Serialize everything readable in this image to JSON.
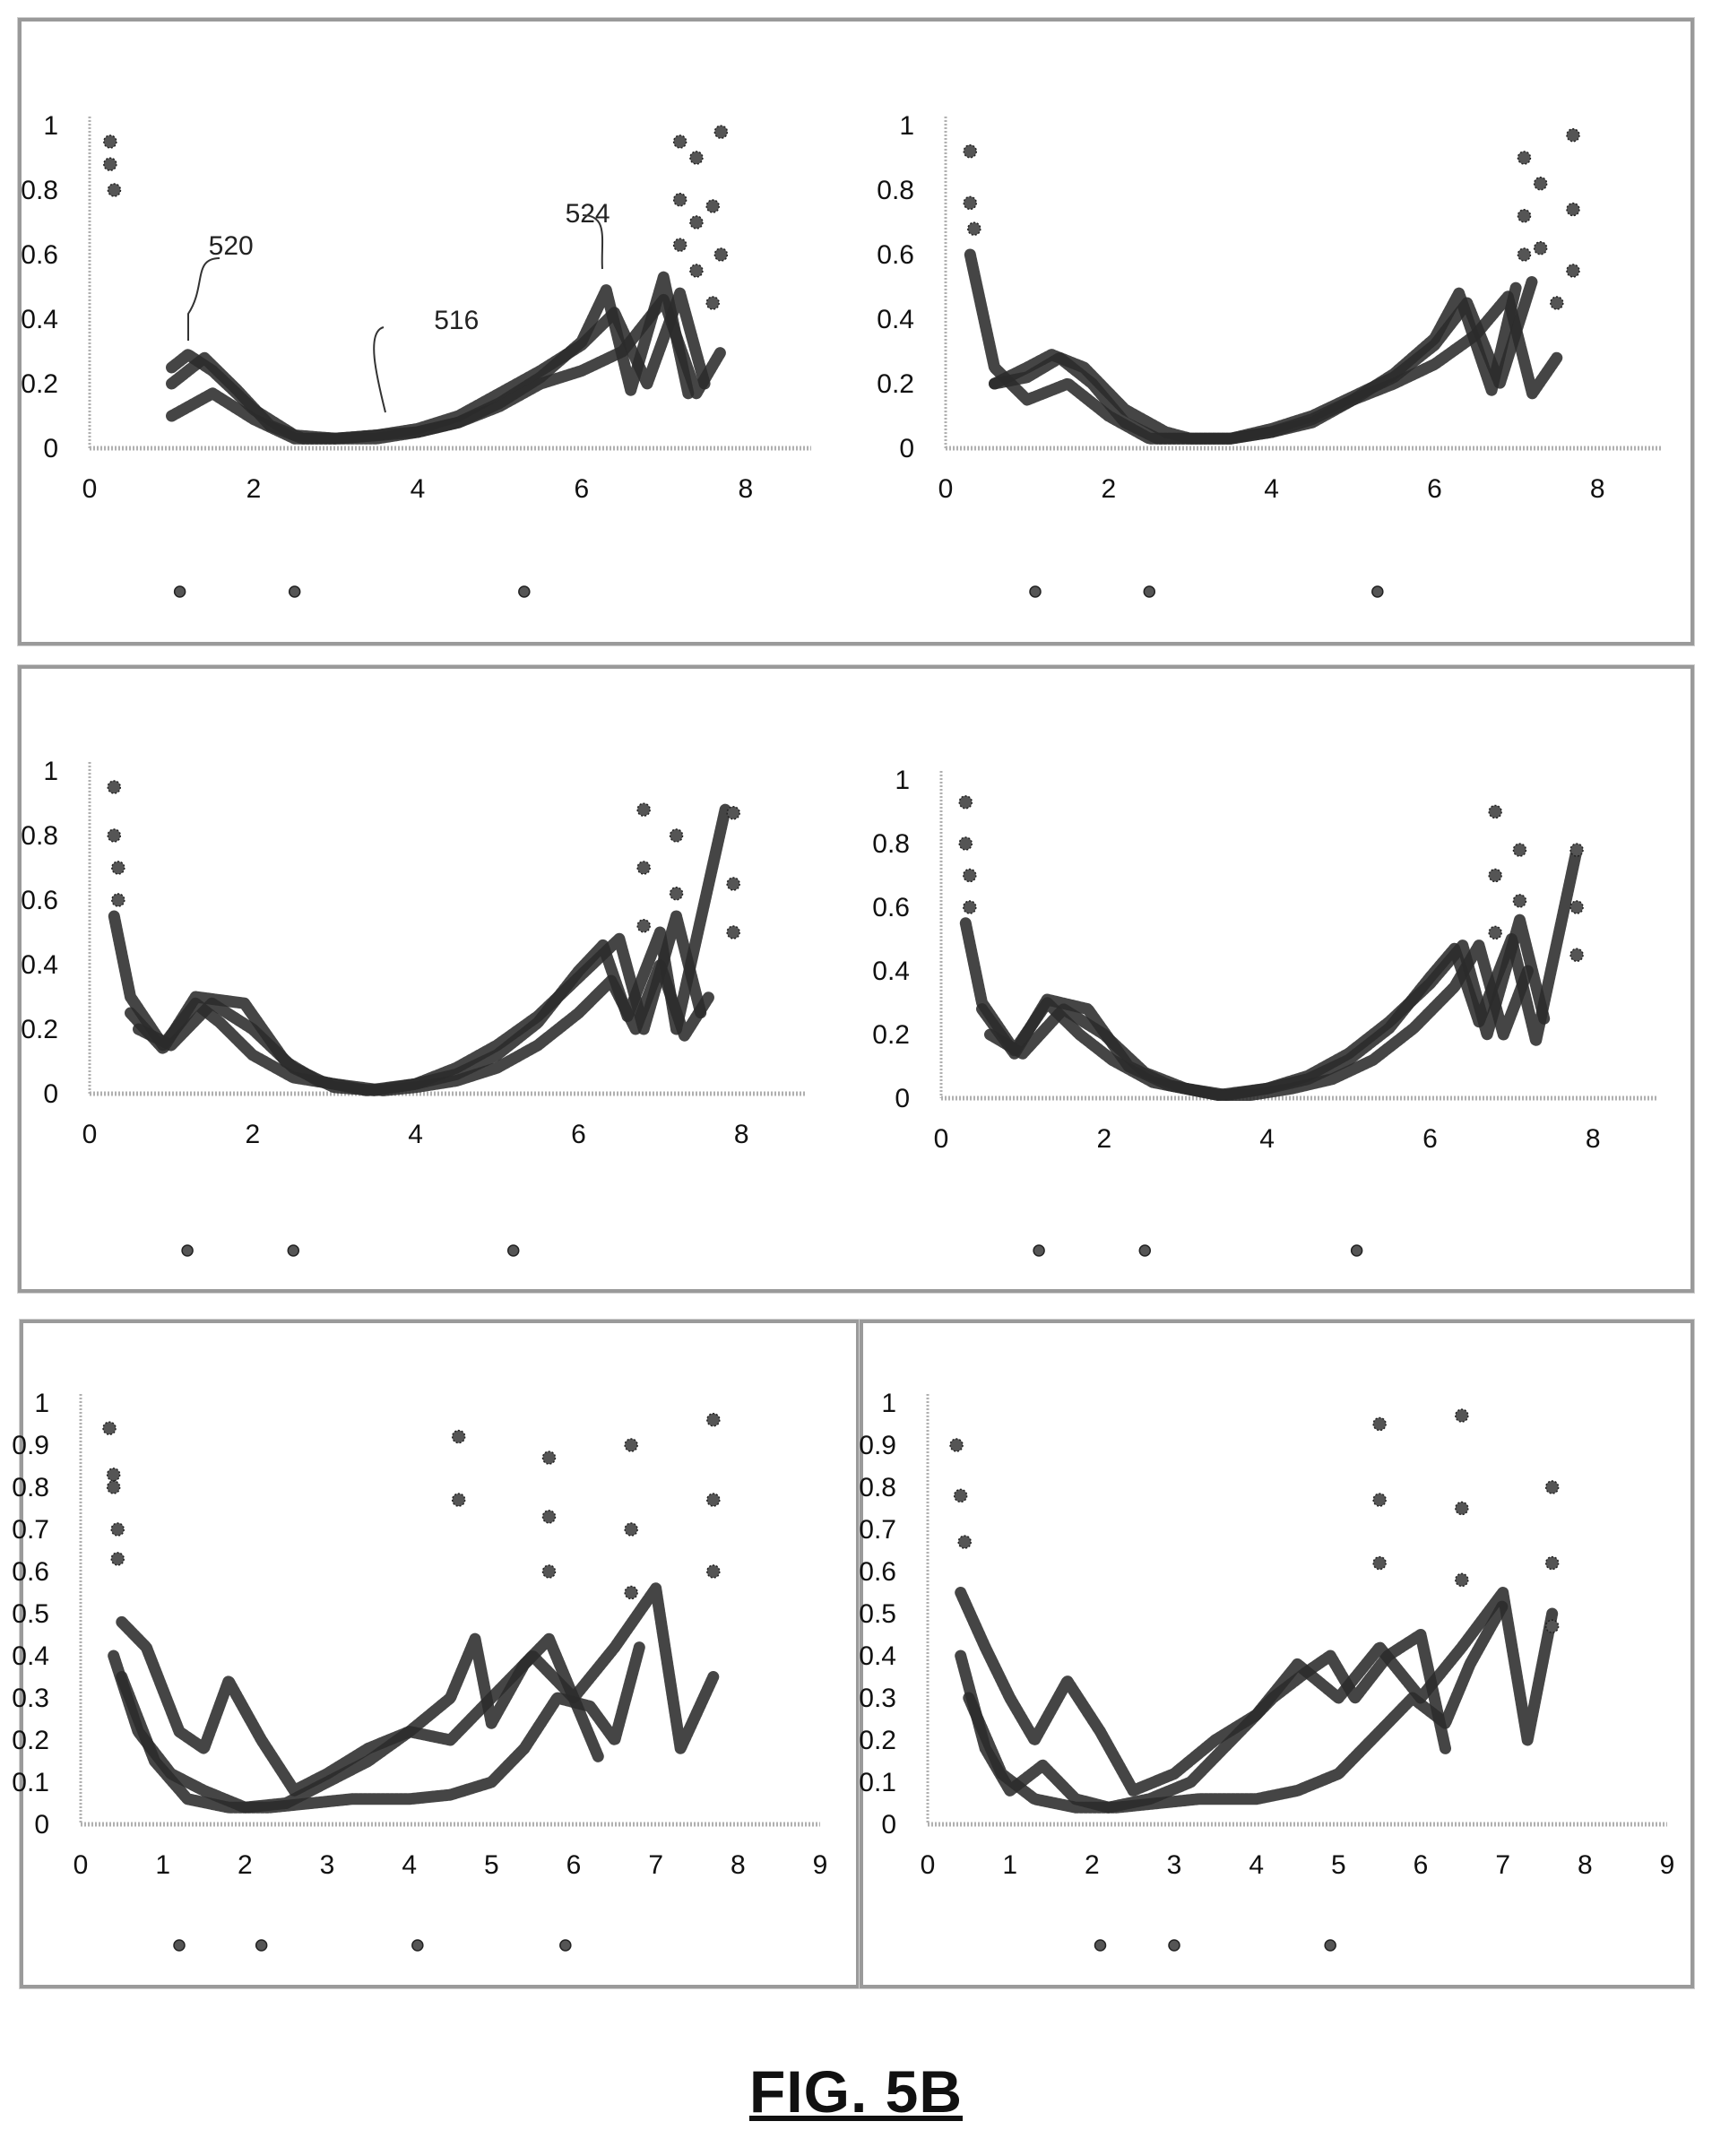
{
  "figure_label": "FIG. 5B",
  "colors": {
    "curve": "#2b2b2b",
    "marker": "#555555",
    "axis": "#b0b0b0",
    "frame": "#9a9a9a"
  },
  "chart_data": [
    {
      "id": "p1",
      "type": "line",
      "xlim": [
        0,
        8.8
      ],
      "ylim": [
        0,
        1
      ],
      "xticks": [
        "0",
        "2",
        "4",
        "6",
        "8"
      ],
      "yticks": [
        "0",
        "0.2",
        "0.4",
        "0.6",
        "0.8",
        "1"
      ],
      "series": [
        {
          "x": [
            1,
            1.5,
            2,
            2.5,
            3,
            3.5,
            4,
            4.5,
            5,
            5.5,
            6,
            6.5,
            7,
            7.4,
            7.7
          ],
          "y": [
            0.1,
            0.17,
            0.09,
            0.03,
            0.03,
            0.03,
            0.05,
            0.08,
            0.13,
            0.2,
            0.24,
            0.3,
            0.46,
            0.17,
            0.3
          ]
        },
        {
          "x": [
            1,
            1.4,
            1.8,
            2.2,
            2.6,
            3,
            3.5,
            4,
            4.5,
            5,
            5.5,
            6,
            6.4,
            6.8,
            7.2,
            7.5
          ],
          "y": [
            0.2,
            0.28,
            0.18,
            0.07,
            0.03,
            0.03,
            0.04,
            0.06,
            0.1,
            0.17,
            0.24,
            0.32,
            0.42,
            0.2,
            0.48,
            0.2
          ]
        },
        {
          "x": [
            1,
            1.2,
            1.5,
            2,
            2.5,
            3,
            3.5,
            4,
            4.5,
            5,
            5.5,
            6,
            6.3,
            6.6,
            7,
            7.3
          ],
          "y": [
            0.25,
            0.29,
            0.24,
            0.12,
            0.04,
            0.03,
            0.04,
            0.05,
            0.08,
            0.14,
            0.22,
            0.33,
            0.49,
            0.18,
            0.53,
            0.17
          ]
        }
      ],
      "points": [
        {
          "x": 0.25,
          "y": 0.95
        },
        {
          "x": 0.25,
          "y": 0.88
        },
        {
          "x": 0.3,
          "y": 0.8
        },
        {
          "x": 7.2,
          "y": 0.95
        },
        {
          "x": 7.4,
          "y": 0.9
        },
        {
          "x": 7.7,
          "y": 0.98
        },
        {
          "x": 7.2,
          "y": 0.77
        },
        {
          "x": 7.6,
          "y": 0.75
        },
        {
          "x": 7.4,
          "y": 0.7
        },
        {
          "x": 7.2,
          "y": 0.63
        },
        {
          "x": 7.7,
          "y": 0.6
        },
        {
          "x": 7.4,
          "y": 0.55
        },
        {
          "x": 7.6,
          "y": 0.45
        }
      ],
      "markers": [
        1.1,
        2.5,
        5.3
      ],
      "annotations": [
        {
          "text": "520",
          "x": 1.45,
          "y": 0.6
        },
        {
          "text": "516",
          "x": 4.2,
          "y": 0.37
        },
        {
          "text": "524",
          "x": 5.8,
          "y": 0.7
        }
      ]
    },
    {
      "id": "p2",
      "type": "line",
      "xlim": [
        0,
        8.8
      ],
      "ylim": [
        0,
        1
      ],
      "xticks": [
        "0",
        "2",
        "4",
        "6",
        "8"
      ],
      "yticks": [
        "0",
        "0.2",
        "0.4",
        "0.6",
        "0.8",
        "1"
      ],
      "series": [
        {
          "x": [
            0.3,
            0.6,
            1,
            1.5,
            2,
            2.5,
            3,
            3.5,
            4,
            4.5,
            5,
            5.5,
            6,
            6.5,
            6.9,
            7.2,
            7.5
          ],
          "y": [
            0.6,
            0.25,
            0.15,
            0.2,
            0.1,
            0.03,
            0.03,
            0.03,
            0.05,
            0.08,
            0.15,
            0.2,
            0.26,
            0.35,
            0.47,
            0.17,
            0.28
          ]
        },
        {
          "x": [
            0.6,
            1,
            1.4,
            1.8,
            2.2,
            2.6,
            3,
            3.5,
            4,
            4.5,
            5,
            5.5,
            6,
            6.4,
            6.8,
            7.2
          ],
          "y": [
            0.2,
            0.22,
            0.28,
            0.2,
            0.08,
            0.03,
            0.03,
            0.03,
            0.06,
            0.1,
            0.16,
            0.22,
            0.32,
            0.45,
            0.2,
            0.52
          ]
        },
        {
          "x": [
            0.6,
            1,
            1.3,
            1.7,
            2.2,
            2.7,
            3,
            3.5,
            4,
            4.5,
            5,
            5.5,
            6,
            6.3,
            6.7,
            7
          ],
          "y": [
            0.2,
            0.25,
            0.29,
            0.25,
            0.12,
            0.05,
            0.03,
            0.03,
            0.05,
            0.09,
            0.15,
            0.23,
            0.34,
            0.48,
            0.18,
            0.5
          ]
        }
      ],
      "points": [
        {
          "x": 0.3,
          "y": 0.92
        },
        {
          "x": 0.3,
          "y": 0.76
        },
        {
          "x": 0.35,
          "y": 0.68
        },
        {
          "x": 7.1,
          "y": 0.9
        },
        {
          "x": 7.3,
          "y": 0.82
        },
        {
          "x": 7.7,
          "y": 0.97
        },
        {
          "x": 7.1,
          "y": 0.72
        },
        {
          "x": 7.7,
          "y": 0.74
        },
        {
          "x": 7.3,
          "y": 0.62
        },
        {
          "x": 7.1,
          "y": 0.6
        },
        {
          "x": 7.7,
          "y": 0.55
        },
        {
          "x": 7.5,
          "y": 0.45
        }
      ],
      "markers": [
        1.1,
        2.5,
        5.3
      ],
      "annotations": []
    },
    {
      "id": "p3",
      "type": "line",
      "xlim": [
        0,
        8.8
      ],
      "ylim": [
        0,
        1
      ],
      "xticks": [
        "0",
        "2",
        "4",
        "6",
        "8"
      ],
      "yticks": [
        "0",
        "0.2",
        "0.4",
        "0.6",
        "0.8",
        "1"
      ],
      "series": [
        {
          "x": [
            0.3,
            0.5,
            0.9,
            1.3,
            1.6,
            2,
            2.5,
            3,
            3.3,
            3.6,
            4,
            4.5,
            5,
            5.5,
            6,
            6.4,
            6.7,
            7,
            7.3,
            7.6
          ],
          "y": [
            0.55,
            0.3,
            0.15,
            0.28,
            0.22,
            0.12,
            0.05,
            0.03,
            0.02,
            0.01,
            0.02,
            0.04,
            0.08,
            0.15,
            0.25,
            0.35,
            0.2,
            0.4,
            0.18,
            0.3
          ]
        },
        {
          "x": [
            0.6,
            1,
            1.5,
            2,
            2.5,
            3,
            3.5,
            4,
            4.5,
            5,
            5.5,
            6,
            6.5,
            6.8,
            7.2,
            7.5
          ],
          "y": [
            0.2,
            0.15,
            0.28,
            0.2,
            0.08,
            0.02,
            0.01,
            0.03,
            0.08,
            0.15,
            0.24,
            0.36,
            0.48,
            0.2,
            0.55,
            0.25
          ]
        },
        {
          "x": [
            0.5,
            0.9,
            1.3,
            1.9,
            2.4,
            2.8,
            3.4,
            4,
            4.5,
            5,
            5.5,
            6,
            6.3,
            6.6,
            7,
            7.2,
            7.8
          ],
          "y": [
            0.25,
            0.14,
            0.3,
            0.28,
            0.1,
            0.04,
            0.01,
            0.03,
            0.06,
            0.12,
            0.22,
            0.38,
            0.46,
            0.24,
            0.5,
            0.2,
            0.88
          ]
        }
      ],
      "points": [
        {
          "x": 0.3,
          "y": 0.95
        },
        {
          "x": 0.3,
          "y": 0.8
        },
        {
          "x": 0.35,
          "y": 0.7
        },
        {
          "x": 0.35,
          "y": 0.6
        },
        {
          "x": 6.8,
          "y": 0.88
        },
        {
          "x": 7.2,
          "y": 0.8
        },
        {
          "x": 7.9,
          "y": 0.87
        },
        {
          "x": 6.8,
          "y": 0.7
        },
        {
          "x": 7.2,
          "y": 0.62
        },
        {
          "x": 7.9,
          "y": 0.65
        },
        {
          "x": 6.8,
          "y": 0.52
        },
        {
          "x": 7.9,
          "y": 0.5
        }
      ],
      "markers": [
        1.2,
        2.5,
        5.2
      ],
      "annotations": []
    },
    {
      "id": "p4",
      "type": "line",
      "xlim": [
        0,
        8.8
      ],
      "ylim": [
        0,
        1
      ],
      "xticks": [
        "0",
        "2",
        "4",
        "6",
        "8"
      ],
      "yticks": [
        "0",
        "0.2",
        "0.4",
        "0.6",
        "0.8",
        "1"
      ],
      "series": [
        {
          "x": [
            0.3,
            0.5,
            0.9,
            1.3,
            1.7,
            2.1,
            2.6,
            3,
            3.4,
            3.8,
            4.3,
            4.8,
            5.3,
            5.8,
            6.3,
            6.6,
            6.9,
            7.2
          ],
          "y": [
            0.55,
            0.3,
            0.15,
            0.3,
            0.2,
            0.12,
            0.05,
            0.03,
            0.01,
            0.01,
            0.03,
            0.06,
            0.12,
            0.22,
            0.35,
            0.48,
            0.2,
            0.4
          ]
        },
        {
          "x": [
            0.6,
            1,
            1.5,
            2,
            2.5,
            3,
            3.5,
            4,
            4.5,
            5,
            5.5,
            6,
            6.4,
            6.7,
            7.1,
            7.4
          ],
          "y": [
            0.2,
            0.14,
            0.28,
            0.2,
            0.08,
            0.03,
            0.01,
            0.03,
            0.07,
            0.14,
            0.24,
            0.36,
            0.48,
            0.2,
            0.56,
            0.25
          ]
        },
        {
          "x": [
            0.5,
            0.9,
            1.3,
            1.8,
            2.3,
            2.8,
            3.4,
            4,
            4.5,
            5,
            5.5,
            6,
            6.3,
            6.6,
            7,
            7.3,
            7.8
          ],
          "y": [
            0.28,
            0.14,
            0.31,
            0.28,
            0.1,
            0.04,
            0.01,
            0.03,
            0.06,
            0.12,
            0.22,
            0.38,
            0.47,
            0.24,
            0.5,
            0.18,
            0.78
          ]
        }
      ],
      "points": [
        {
          "x": 0.3,
          "y": 0.93
        },
        {
          "x": 0.3,
          "y": 0.8
        },
        {
          "x": 0.35,
          "y": 0.7
        },
        {
          "x": 0.35,
          "y": 0.6
        },
        {
          "x": 6.8,
          "y": 0.9
        },
        {
          "x": 7.1,
          "y": 0.78
        },
        {
          "x": 7.8,
          "y": 0.78
        },
        {
          "x": 6.8,
          "y": 0.7
        },
        {
          "x": 7.1,
          "y": 0.62
        },
        {
          "x": 7.8,
          "y": 0.6
        },
        {
          "x": 6.8,
          "y": 0.52
        },
        {
          "x": 7.8,
          "y": 0.45
        }
      ],
      "markers": [
        1.2,
        2.5,
        5.1
      ],
      "annotations": []
    },
    {
      "id": "p5",
      "type": "line",
      "xlim": [
        0,
        9
      ],
      "ylim": [
        0,
        1
      ],
      "xticks": [
        "0",
        "1",
        "2",
        "3",
        "4",
        "5",
        "6",
        "7",
        "8",
        "9"
      ],
      "yticks": [
        "0",
        "0.1",
        "0.2",
        "0.3",
        "0.4",
        "0.5",
        "0.6",
        "0.7",
        "0.8",
        "0.9",
        "1"
      ],
      "series": [
        {
          "x": [
            0.5,
            0.8,
            1.2,
            1.5,
            1.8,
            2.2,
            2.6,
            3,
            3.5,
            4,
            4.5,
            5,
            5.5,
            6,
            6.5,
            7,
            7.3,
            7.7
          ],
          "y": [
            0.48,
            0.42,
            0.22,
            0.18,
            0.34,
            0.2,
            0.08,
            0.12,
            0.18,
            0.22,
            0.2,
            0.3,
            0.4,
            0.3,
            0.42,
            0.56,
            0.18,
            0.35
          ]
        },
        {
          "x": [
            0.4,
            0.7,
            1.1,
            1.5,
            2,
            2.5,
            3,
            3.5,
            4,
            4.5,
            4.8,
            5,
            5.4,
            5.7,
            6,
            6.3
          ],
          "y": [
            0.4,
            0.22,
            0.12,
            0.08,
            0.04,
            0.05,
            0.1,
            0.15,
            0.22,
            0.3,
            0.44,
            0.24,
            0.38,
            0.44,
            0.3,
            0.16
          ]
        },
        {
          "x": [
            0.5,
            0.9,
            1.3,
            1.8,
            2.3,
            2.8,
            3.3,
            4,
            4.5,
            5,
            5.4,
            5.8,
            6.2,
            6.5,
            6.8
          ],
          "y": [
            0.35,
            0.15,
            0.06,
            0.04,
            0.04,
            0.05,
            0.06,
            0.06,
            0.07,
            0.1,
            0.18,
            0.3,
            0.28,
            0.2,
            0.42
          ]
        }
      ],
      "points": [
        {
          "x": 0.35,
          "y": 0.94
        },
        {
          "x": 0.4,
          "y": 0.83
        },
        {
          "x": 0.4,
          "y": 0.8
        },
        {
          "x": 0.45,
          "y": 0.7
        },
        {
          "x": 0.45,
          "y": 0.63
        },
        {
          "x": 4.6,
          "y": 0.92
        },
        {
          "x": 4.6,
          "y": 0.77
        },
        {
          "x": 5.7,
          "y": 0.87
        },
        {
          "x": 5.7,
          "y": 0.73
        },
        {
          "x": 5.7,
          "y": 0.6
        },
        {
          "x": 6.7,
          "y": 0.9
        },
        {
          "x": 6.7,
          "y": 0.7
        },
        {
          "x": 6.7,
          "y": 0.55
        },
        {
          "x": 7.7,
          "y": 0.96
        },
        {
          "x": 7.7,
          "y": 0.77
        },
        {
          "x": 7.7,
          "y": 0.6
        }
      ],
      "markers": [
        1.2,
        2.2,
        4.1,
        5.9
      ],
      "annotations": []
    },
    {
      "id": "p6",
      "type": "line",
      "xlim": [
        0,
        9
      ],
      "ylim": [
        0,
        1
      ],
      "xticks": [
        "0",
        "1",
        "2",
        "3",
        "4",
        "5",
        "6",
        "7",
        "8",
        "9"
      ],
      "yticks": [
        "0",
        "0.1",
        "0.2",
        "0.3",
        "0.4",
        "0.5",
        "0.6",
        "0.7",
        "0.8",
        "0.9",
        "1"
      ],
      "series": [
        {
          "x": [
            0.4,
            0.7,
            1,
            1.3,
            1.7,
            2.1,
            2.5,
            3,
            3.5,
            4,
            4.5,
            5,
            5.5,
            6,
            6.5,
            7,
            7.3,
            7.6
          ],
          "y": [
            0.55,
            0.42,
            0.3,
            0.2,
            0.34,
            0.22,
            0.08,
            0.12,
            0.2,
            0.26,
            0.38,
            0.3,
            0.42,
            0.3,
            0.42,
            0.55,
            0.2,
            0.5
          ]
        },
        {
          "x": [
            0.4,
            0.7,
            1,
            1.4,
            1.8,
            2.2,
            2.7,
            3.2,
            3.7,
            4.2,
            4.6,
            4.9,
            5.2,
            5.6,
            6,
            6.3
          ],
          "y": [
            0.4,
            0.18,
            0.08,
            0.14,
            0.06,
            0.04,
            0.06,
            0.1,
            0.2,
            0.3,
            0.36,
            0.4,
            0.3,
            0.4,
            0.45,
            0.18
          ]
        },
        {
          "x": [
            0.5,
            0.9,
            1.3,
            1.8,
            2.3,
            2.8,
            3.3,
            4,
            4.5,
            5,
            5.5,
            5.9,
            6.3,
            6.6,
            7
          ],
          "y": [
            0.3,
            0.12,
            0.06,
            0.04,
            0.04,
            0.05,
            0.06,
            0.06,
            0.08,
            0.12,
            0.22,
            0.3,
            0.24,
            0.38,
            0.52
          ]
        }
      ],
      "points": [
        {
          "x": 0.35,
          "y": 0.9
        },
        {
          "x": 0.4,
          "y": 0.78
        },
        {
          "x": 0.45,
          "y": 0.67
        },
        {
          "x": 5.5,
          "y": 0.95
        },
        {
          "x": 5.5,
          "y": 0.77
        },
        {
          "x": 5.5,
          "y": 0.62
        },
        {
          "x": 6.5,
          "y": 0.97
        },
        {
          "x": 6.5,
          "y": 0.75
        },
        {
          "x": 6.5,
          "y": 0.58
        },
        {
          "x": 7.6,
          "y": 0.8
        },
        {
          "x": 7.6,
          "y": 0.62
        },
        {
          "x": 7.6,
          "y": 0.47
        }
      ],
      "markers": [
        2.1,
        3,
        4.9
      ],
      "annotations": []
    }
  ]
}
